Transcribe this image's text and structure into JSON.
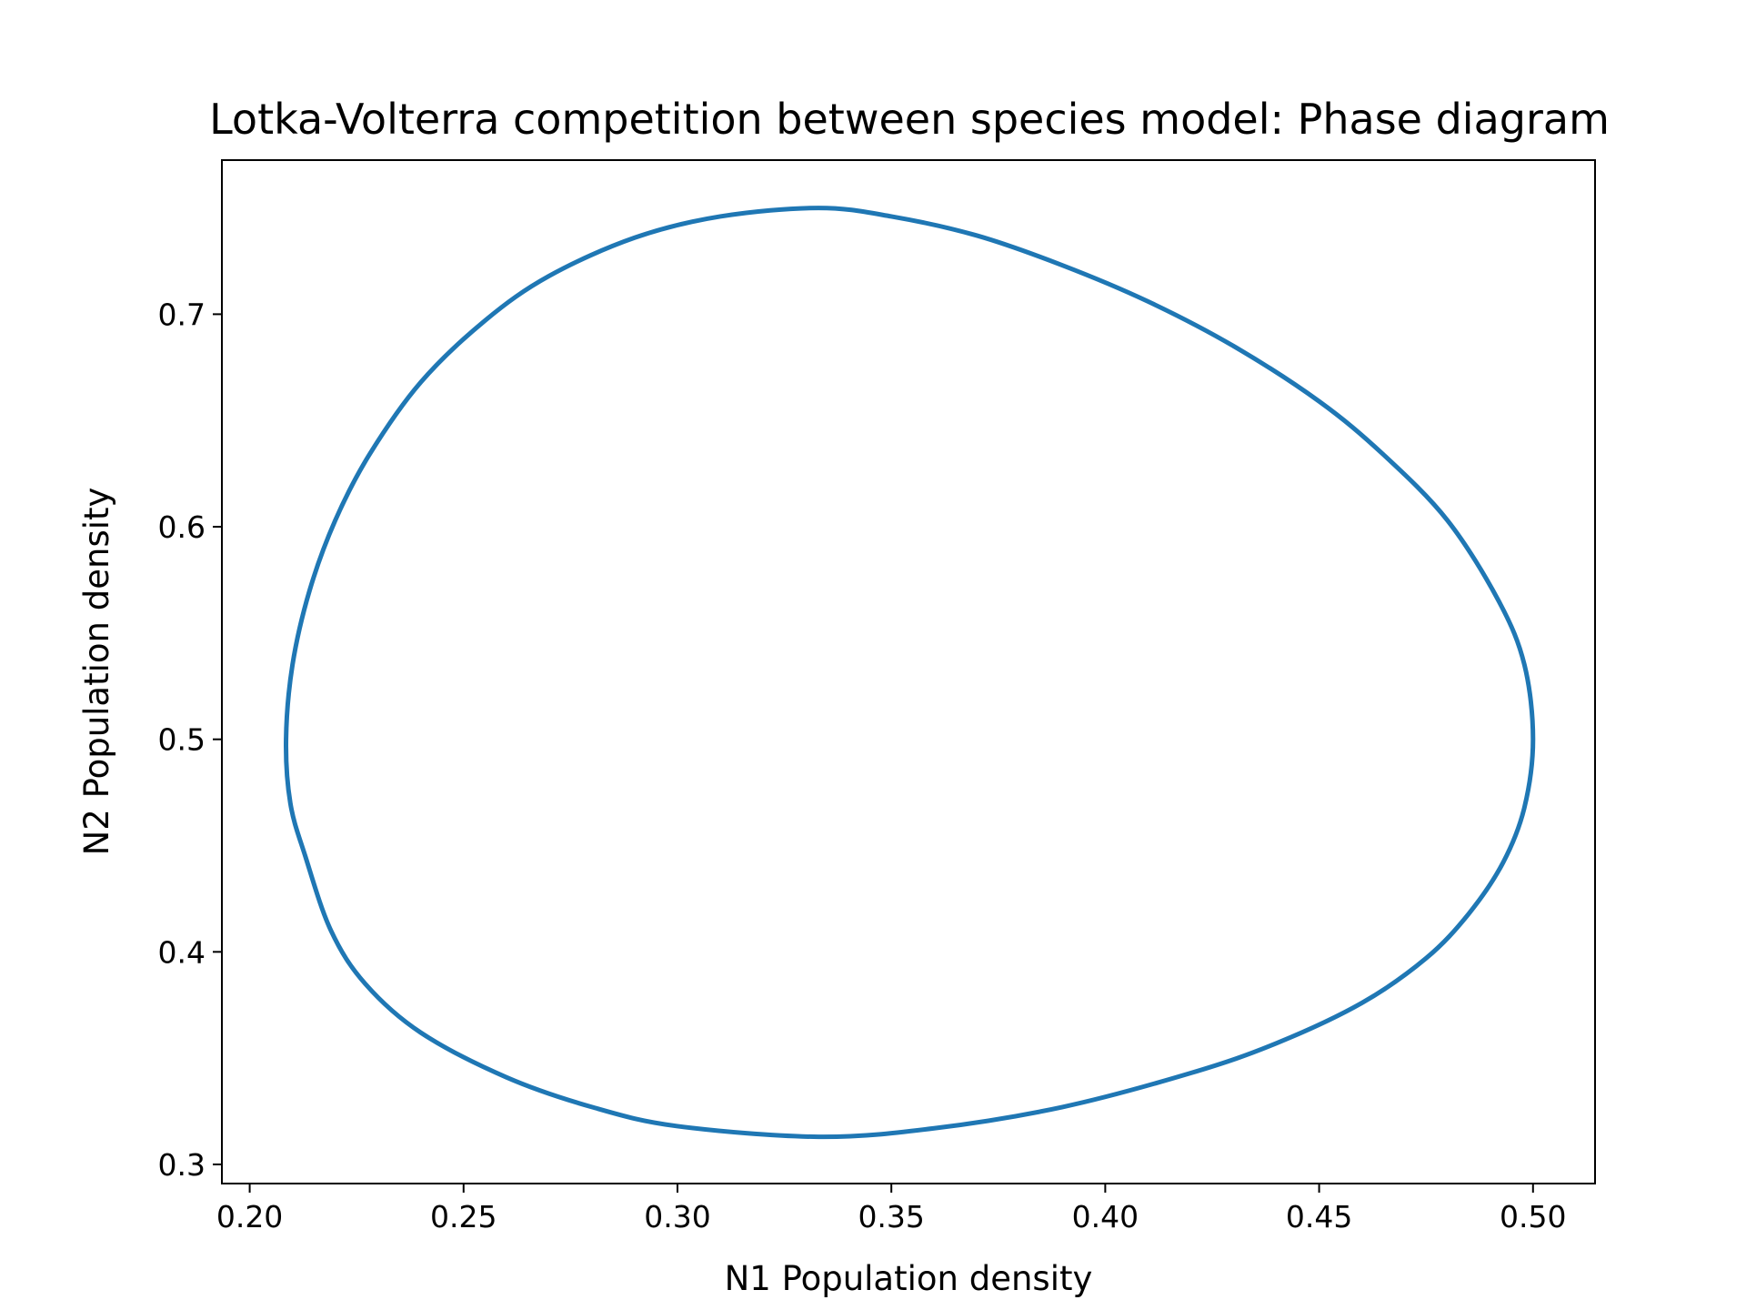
{
  "chart_data": {
    "type": "line",
    "title": "Lotka-Volterra competition between species model: Phase diagram",
    "xlabel": "N1 Population density",
    "ylabel": "N2 Population density",
    "xlim": [
      0.1935,
      0.5145
    ],
    "ylim": [
      0.291,
      0.7725
    ],
    "xticks": [
      0.2,
      0.25,
      0.3,
      0.35,
      0.4,
      0.45,
      0.5
    ],
    "xtick_labels": [
      "0.20",
      "0.25",
      "0.30",
      "0.35",
      "0.40",
      "0.45",
      "0.50"
    ],
    "yticks": [
      0.3,
      0.4,
      0.5,
      0.6,
      0.7
    ],
    "ytick_labels": [
      "0.3",
      "0.4",
      "0.5",
      "0.6",
      "0.7"
    ],
    "grid": false,
    "series": [
      {
        "color": "#1f77b4",
        "x": [
          0.5,
          0.498,
          0.492,
          0.48,
          0.465,
          0.45,
          0.43,
          0.41,
          0.39,
          0.37,
          0.35,
          0.333,
          0.31,
          0.29,
          0.27,
          0.255,
          0.24,
          0.228,
          0.22,
          0.214,
          0.21,
          0.2085,
          0.2095,
          0.213,
          0.219,
          0.227,
          0.24,
          0.26,
          0.28,
          0.3,
          0.333,
          0.36,
          0.39,
          0.42,
          0.44,
          0.46,
          0.475,
          0.485,
          0.493,
          0.498,
          0.5
        ],
        "y": [
          0.5,
          0.535,
          0.565,
          0.603,
          0.634,
          0.659,
          0.685,
          0.706,
          0.723,
          0.737,
          0.746,
          0.75,
          0.746,
          0.736,
          0.718,
          0.697,
          0.668,
          0.634,
          0.603,
          0.57,
          0.535,
          0.5,
          0.47,
          0.445,
          0.41,
          0.385,
          0.362,
          0.341,
          0.327,
          0.318,
          0.313,
          0.317,
          0.327,
          0.343,
          0.357,
          0.376,
          0.397,
          0.418,
          0.442,
          0.468,
          0.5
        ]
      }
    ]
  }
}
